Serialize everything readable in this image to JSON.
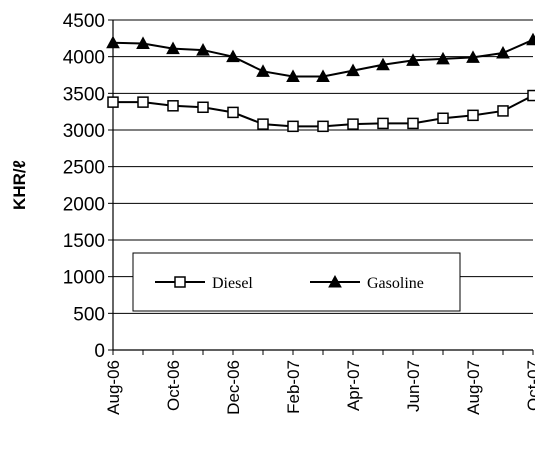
{
  "chart_data": {
    "type": "line",
    "title": "",
    "xlabel": "",
    "ylabel": "KHR/ℓ",
    "ylim": [
      0,
      4500
    ],
    "y_ticks": [
      0,
      500,
      1000,
      1500,
      2000,
      2500,
      3000,
      3500,
      4000,
      4500
    ],
    "grid": "horizontal",
    "legend_position": "lower-left",
    "x": [
      "Aug-06",
      "Sep-06",
      "Oct-06",
      "Nov-06",
      "Dec-06",
      "Jan-07",
      "Feb-07",
      "Mar-07",
      "Apr-07",
      "May-07",
      "Jun-07",
      "Jul-07",
      "Aug-07",
      "Sep-07",
      "Oct-07"
    ],
    "x_tick_labels": [
      "Aug-06",
      "Oct-06",
      "Dec-06",
      "Feb-07",
      "Apr-07",
      "Jun-07",
      "Aug-07",
      "Oct-07"
    ],
    "series": [
      {
        "name": "Diesel",
        "marker": "open-square",
        "color": "#000000",
        "values": [
          3380,
          3380,
          3330,
          3310,
          3240,
          3080,
          3050,
          3050,
          3080,
          3090,
          3090,
          3160,
          3200,
          3260,
          3470
        ]
      },
      {
        "name": "Gasoline",
        "marker": "filled-triangle",
        "color": "#000000",
        "values": [
          4190,
          4180,
          4110,
          4090,
          4000,
          3800,
          3730,
          3730,
          3810,
          3890,
          3950,
          3970,
          3990,
          4050,
          4230
        ]
      }
    ]
  }
}
